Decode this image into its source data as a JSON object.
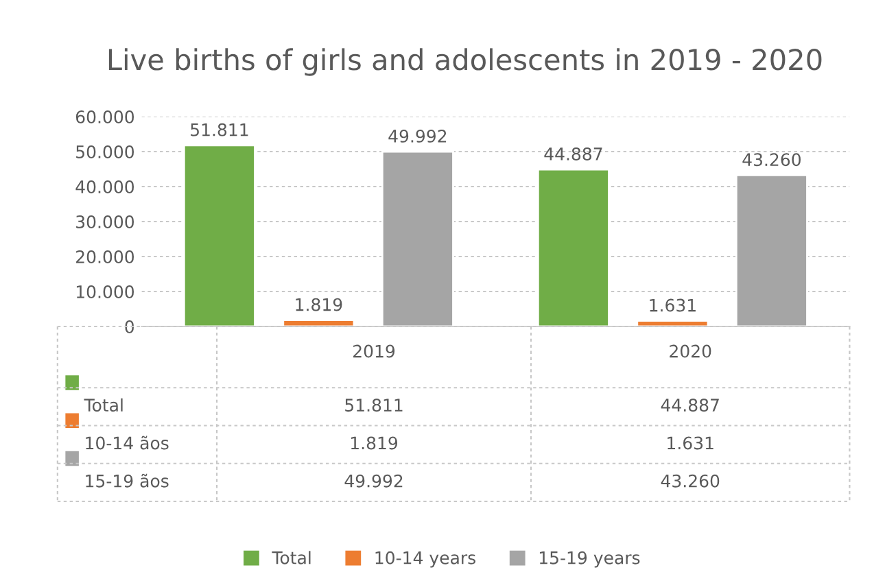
{
  "chart_data": {
    "type": "bar",
    "title": "Live births of girls and adolescents in 2019 - 2020",
    "categories": [
      "2019",
      "2020"
    ],
    "series": [
      {
        "name": "Total",
        "color": "#70ad47",
        "values": [
          51811,
          44887
        ],
        "value_labels": [
          "51.811",
          "44.887"
        ]
      },
      {
        "name": "10-14 years",
        "color": "#ed7d31",
        "values": [
          1819,
          1631
        ],
        "value_labels": [
          "1.819",
          "1.631"
        ]
      },
      {
        "name": "15-19 years",
        "color": "#a5a5a5",
        "values": [
          49992,
          43260
        ],
        "value_labels": [
          "49.992",
          "43.260"
        ]
      }
    ],
    "annotations": [
      "Total",
      "10-14 ãos",
      "15-19 ãos"
    ],
    "ylim": [
      0,
      60000
    ],
    "yticks": [
      {
        "value": 0,
        "label": "0"
      },
      {
        "value": 10000,
        "label": "10.000"
      },
      {
        "value": 20000,
        "label": "20.000"
      },
      {
        "value": 30000,
        "label": "30.000"
      },
      {
        "value": 40000,
        "label": "40.000"
      },
      {
        "value": 50000,
        "label": "50.000"
      },
      {
        "value": 60000,
        "label": "60.000"
      }
    ],
    "grid": "y",
    "legend": "bottom"
  }
}
